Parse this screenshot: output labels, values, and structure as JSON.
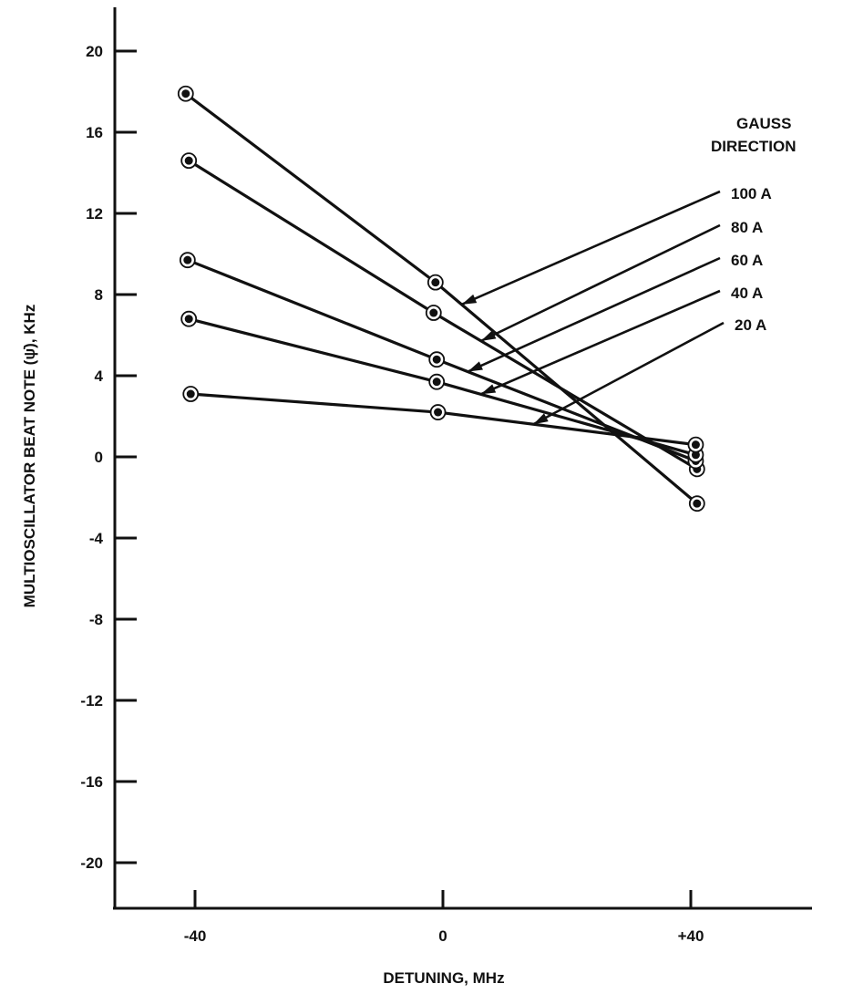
{
  "chart_data": {
    "type": "line",
    "xlabel": "DETUNING, MHz",
    "ylabel": "MULTIOSCILLATOR BEAT NOTE (ψ̇), KHz",
    "xlim": [
      -40,
      40
    ],
    "ylim": [
      -22,
      22
    ],
    "x_ticks": [
      -40,
      0,
      40
    ],
    "x_tick_labels": [
      "-40",
      "0",
      "+40"
    ],
    "y_ticks": [
      20,
      16,
      12,
      8,
      4,
      0,
      -4,
      -8,
      -12,
      -16,
      -20
    ],
    "y_tick_labels": [
      "20",
      "16",
      "12",
      "8",
      "4",
      "0",
      "-4",
      "-8",
      "-12",
      "-16",
      "-20"
    ],
    "grid": false,
    "legend_title": [
      "GAUSS",
      "DIRECTION"
    ],
    "legend_placement": "right",
    "x": [
      -40,
      0,
      40
    ],
    "series": [
      {
        "name": "100 A",
        "values": [
          17.9,
          8.6,
          -2.3
        ]
      },
      {
        "name": "80 A",
        "values": [
          14.6,
          7.1,
          -0.6
        ]
      },
      {
        "name": "60 A",
        "values": [
          9.7,
          4.8,
          -0.2
        ]
      },
      {
        "name": "40 A",
        "values": [
          6.8,
          3.7,
          0.1
        ]
      },
      {
        "name": "20 A",
        "values": [
          3.1,
          2.2,
          0.6
        ]
      }
    ]
  }
}
